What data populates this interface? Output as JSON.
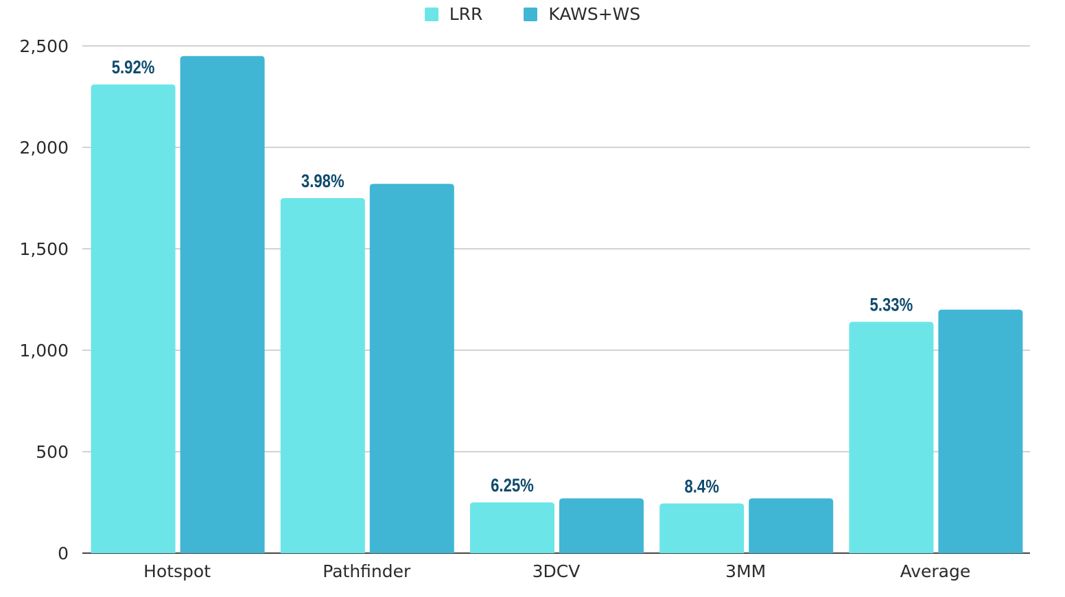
{
  "chart_data": {
    "type": "bar",
    "categories": [
      "Hotspot",
      "Pathfinder",
      "3DCV",
      "3MM",
      "Average"
    ],
    "series": [
      {
        "name": "LRR",
        "values": [
          2310,
          1750,
          250,
          245,
          1140
        ],
        "color": "#6ce5e8"
      },
      {
        "name": "KAWS+WS",
        "values": [
          2450,
          1820,
          270,
          270,
          1200
        ],
        "color": "#41b6d4"
      }
    ],
    "annotations": [
      "5.92%",
      "3.98%",
      "6.25%",
      "8.4%",
      "5.33%"
    ],
    "yticks": [
      "0",
      "500",
      "1,000",
      "1,500",
      "2,000",
      "2,500"
    ],
    "ylim": [
      0,
      2500
    ],
    "grid": true,
    "legend_position": "top-center",
    "title": "",
    "xlabel": "",
    "ylabel": ""
  }
}
